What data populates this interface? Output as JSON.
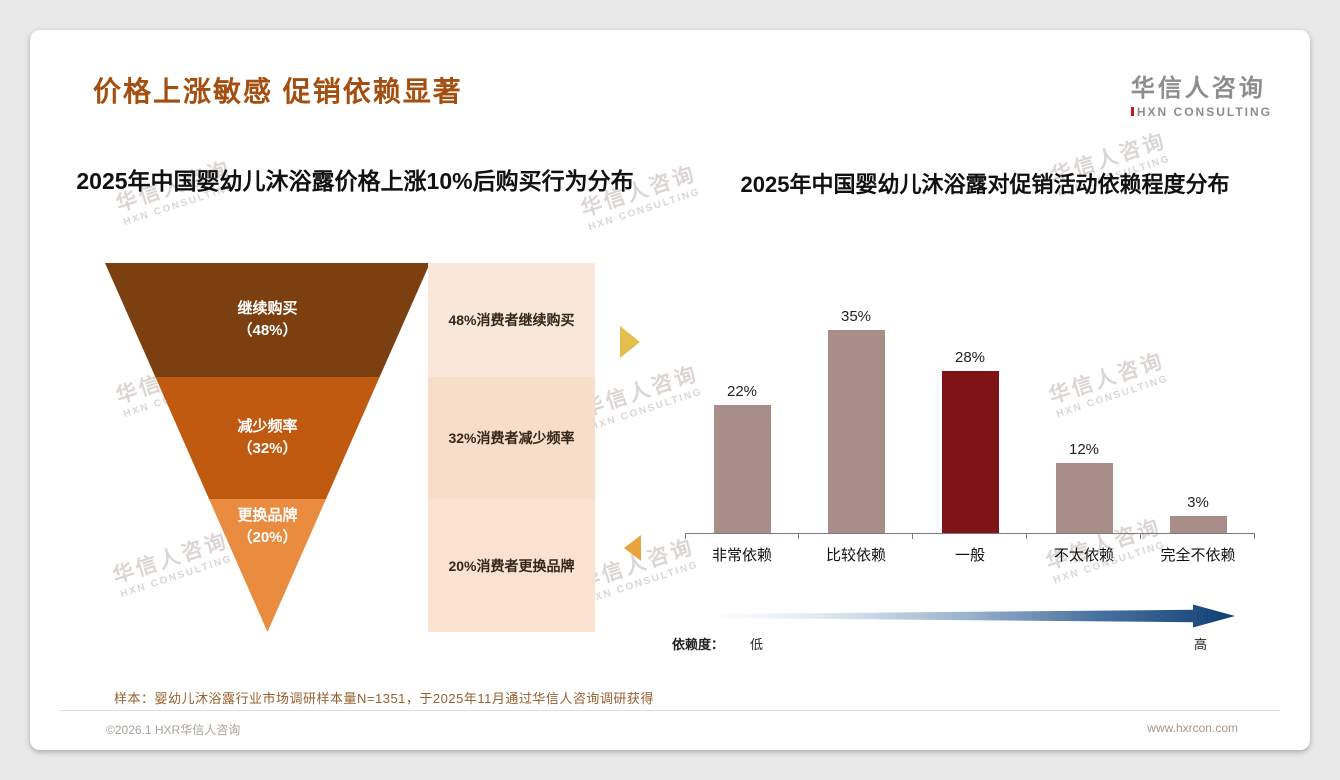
{
  "slide": {
    "title": "价格上涨敏感 促销依赖显著",
    "logo": {
      "cn": "华信人咨询",
      "en": "HXN CONSULTING"
    },
    "watermark": {
      "cn": "华信人咨询",
      "en": "HXN CONSULTING"
    },
    "footnote": "样本：婴幼儿沐浴露行业市场调研样本量N=1351，于2025年11月通过华信人咨询调研获得",
    "copyright": "©2026.1 HXR华信人咨询",
    "website": "www.hxrcon.com"
  },
  "chart_data": [
    {
      "type": "funnel",
      "title": "2025年中国婴幼儿沐浴露价格上涨10%后购买行为分布",
      "segments": [
        {
          "label": "继续购买",
          "pct": "（48%）",
          "value": 48,
          "desc": "48%消费者继续购买",
          "color": "#7b3f10",
          "desc_bg": "#fae7db"
        },
        {
          "label": "减少频率",
          "pct": "（32%）",
          "value": 32,
          "desc": "32%消费者减少频率",
          "color": "#c05a11",
          "desc_bg": "#f8ddc9"
        },
        {
          "label": "更换品牌",
          "pct": "（20%）",
          "value": 20,
          "desc": "20%消费者更换品牌",
          "color": "#e98c40",
          "desc_bg": "#fae2d0"
        }
      ]
    },
    {
      "type": "bar",
      "title": "2025年中国婴幼儿沐浴露对促销活动依赖程度分布",
      "categories": [
        "非常依赖",
        "比较依赖",
        "一般",
        "不太依赖",
        "完全不依赖"
      ],
      "values": [
        22,
        35,
        28,
        12,
        3
      ],
      "value_labels": [
        "22%",
        "35%",
        "28%",
        "12%",
        "3%"
      ],
      "bar_color": "#a98d88",
      "highlight_index": 2,
      "highlight_color": "#7e1418",
      "ylim": [
        0,
        35
      ],
      "legend": "none",
      "grid": false,
      "axis": {
        "label": "依赖度：",
        "low": "低",
        "high": "高"
      }
    }
  ]
}
